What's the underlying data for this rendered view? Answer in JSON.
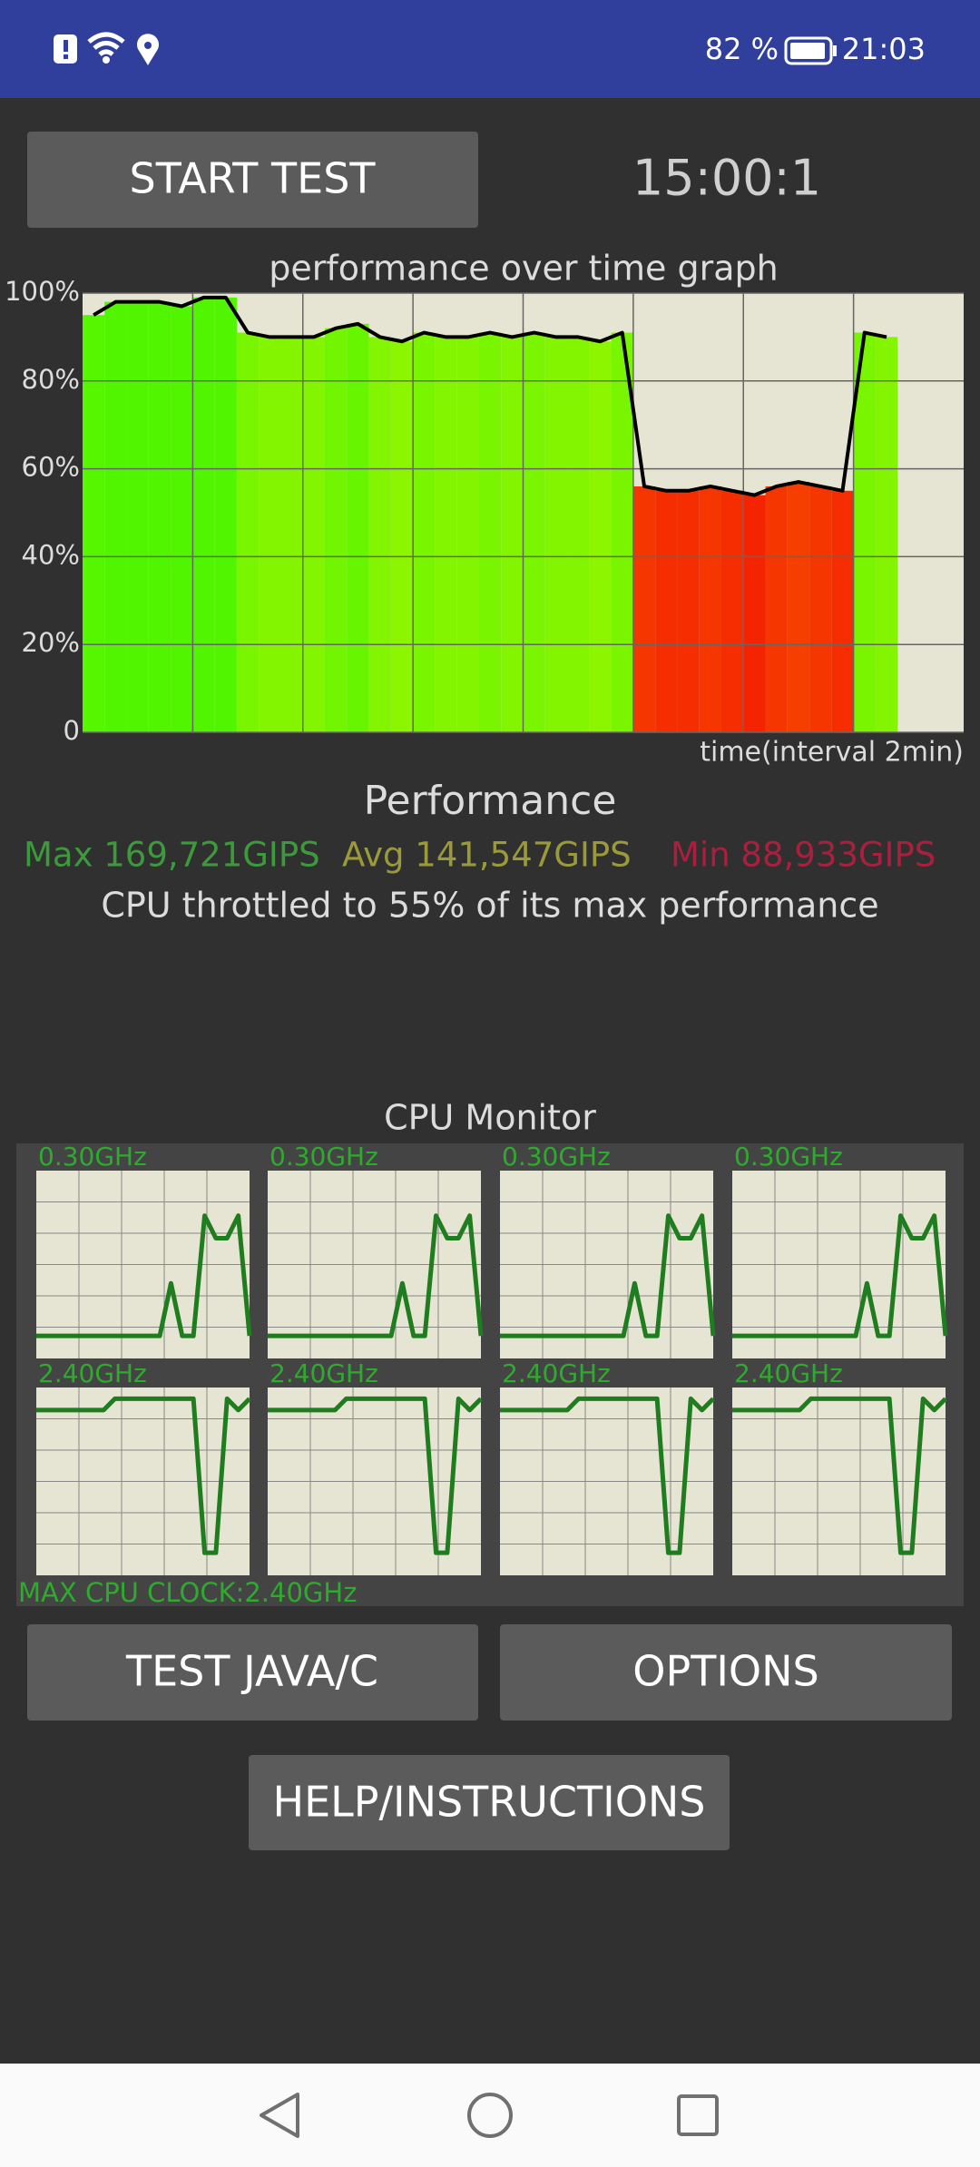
{
  "status_bar": {
    "battery": "82 %",
    "time": "21:03"
  },
  "buttons": {
    "start_test": "START TEST",
    "test_java_c": "TEST JAVA/C",
    "options": "OPTIONS",
    "help": "HELP/INSTRUCTIONS"
  },
  "timer": "15:00:1",
  "performance": {
    "title": "Performance",
    "max": "Max 169,721GIPS",
    "avg": "Avg 141,547GIPS",
    "min": "Min 88,933GIPS",
    "summary": "CPU throttled to 55% of its max performance"
  },
  "cpu_monitor": {
    "title": "CPU Monitor",
    "max_clock": "MAX CPU CLOCK:2.40GHz"
  },
  "chart_data": [
    {
      "type": "bar",
      "title": "performance over time graph",
      "x_label": "time(interval 2min)",
      "x": [
        0,
        1,
        2,
        3,
        4,
        5,
        6,
        7,
        8,
        9,
        10,
        11,
        12,
        13,
        14,
        15,
        16,
        17,
        18,
        19,
        20,
        21,
        22,
        23,
        24,
        25,
        26,
        27,
        28,
        29,
        30,
        31,
        32,
        33,
        34,
        35,
        36
      ],
      "values": [
        95,
        98,
        98,
        98,
        97,
        99,
        99,
        91,
        90,
        90,
        90,
        92,
        93,
        90,
        89,
        91,
        90,
        90,
        91,
        90,
        91,
        90,
        90,
        89,
        91,
        56,
        55,
        55,
        56,
        55,
        54,
        56,
        57,
        56,
        55,
        91,
        90
      ],
      "xlim": [
        0,
        40
      ],
      "xticks": [
        5,
        10,
        15,
        20,
        25,
        30,
        35
      ],
      "ylim": [
        0,
        100
      ],
      "yticks": [
        0,
        {
          "value": 20,
          "label": "20%"
        },
        {
          "value": 40,
          "label": "40%"
        },
        {
          "value": 60,
          "label": "60%"
        },
        {
          "value": 80,
          "label": "80%"
        },
        {
          "value": 100,
          "label": "100%"
        }
      ],
      "grid": true,
      "line_color": "#000000"
    },
    {
      "type": "line",
      "title": "0.30GHz",
      "color": "#1f7d1f",
      "ylim": [
        0,
        2.5
      ],
      "values": [
        0.3,
        0.3,
        0.3,
        0.3,
        0.3,
        0.3,
        0.3,
        0.3,
        0.3,
        0.3,
        0.3,
        0.3,
        1.0,
        0.3,
        0.3,
        1.9,
        1.6,
        1.6,
        1.9,
        0.3
      ]
    },
    {
      "type": "line",
      "title": "0.30GHz",
      "color": "#1f7d1f",
      "ylim": [
        0,
        2.5
      ],
      "values": [
        0.3,
        0.3,
        0.3,
        0.3,
        0.3,
        0.3,
        0.3,
        0.3,
        0.3,
        0.3,
        0.3,
        0.3,
        1.0,
        0.3,
        0.3,
        1.9,
        1.6,
        1.6,
        1.9,
        0.3
      ]
    },
    {
      "type": "line",
      "title": "0.30GHz",
      "color": "#1f7d1f",
      "ylim": [
        0,
        2.5
      ],
      "values": [
        0.3,
        0.3,
        0.3,
        0.3,
        0.3,
        0.3,
        0.3,
        0.3,
        0.3,
        0.3,
        0.3,
        0.3,
        1.0,
        0.3,
        0.3,
        1.9,
        1.6,
        1.6,
        1.9,
        0.3
      ]
    },
    {
      "type": "line",
      "title": "0.30GHz",
      "color": "#1f7d1f",
      "ylim": [
        0,
        2.5
      ],
      "values": [
        0.3,
        0.3,
        0.3,
        0.3,
        0.3,
        0.3,
        0.3,
        0.3,
        0.3,
        0.3,
        0.3,
        0.3,
        1.0,
        0.3,
        0.3,
        1.9,
        1.6,
        1.6,
        1.9,
        0.3
      ]
    },
    {
      "type": "line",
      "title": "2.40GHz",
      "color": "#1f7d1f",
      "ylim": [
        0,
        2.5
      ],
      "values": [
        2.2,
        2.2,
        2.2,
        2.2,
        2.2,
        2.2,
        2.2,
        2.35,
        2.35,
        2.35,
        2.35,
        2.35,
        2.35,
        2.35,
        2.35,
        0.3,
        0.3,
        2.35,
        2.2,
        2.35
      ]
    },
    {
      "type": "line",
      "title": "2.40GHz",
      "color": "#1f7d1f",
      "ylim": [
        0,
        2.5
      ],
      "values": [
        2.2,
        2.2,
        2.2,
        2.2,
        2.2,
        2.2,
        2.2,
        2.35,
        2.35,
        2.35,
        2.35,
        2.35,
        2.35,
        2.35,
        2.35,
        0.3,
        0.3,
        2.35,
        2.2,
        2.35
      ]
    },
    {
      "type": "line",
      "title": "2.40GHz",
      "color": "#1f7d1f",
      "ylim": [
        0,
        2.5
      ],
      "values": [
        2.2,
        2.2,
        2.2,
        2.2,
        2.2,
        2.2,
        2.2,
        2.35,
        2.35,
        2.35,
        2.35,
        2.35,
        2.35,
        2.35,
        2.35,
        0.3,
        0.3,
        2.35,
        2.2,
        2.35
      ]
    },
    {
      "type": "line",
      "title": "2.40GHz",
      "color": "#1f7d1f",
      "ylim": [
        0,
        2.5
      ],
      "values": [
        2.2,
        2.2,
        2.2,
        2.2,
        2.2,
        2.2,
        2.2,
        2.35,
        2.35,
        2.35,
        2.35,
        2.35,
        2.35,
        2.35,
        2.35,
        0.3,
        0.3,
        2.35,
        2.2,
        2.35
      ]
    }
  ]
}
